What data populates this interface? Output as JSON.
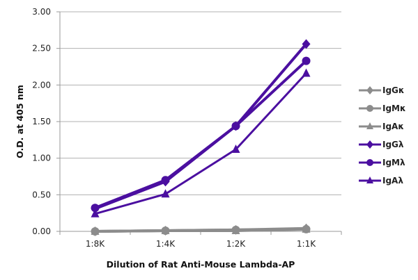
{
  "chart_data": {
    "type": "line",
    "title": "",
    "xlabel": "Dilution of Rat Anti-Mouse Lambda-AP",
    "ylabel": "O.D. at 405 nm",
    "categories": [
      "1:8K",
      "1:4K",
      "1:2K",
      "1:1K"
    ],
    "ylim": [
      0,
      3.0
    ],
    "yticks": [
      "0.00",
      "0.50",
      "1.00",
      "1.50",
      "2.00",
      "2.50",
      "3.00"
    ],
    "ytick_values": [
      0,
      0.5,
      1.0,
      1.5,
      2.0,
      2.5,
      3.0
    ],
    "grid": true,
    "legend_position": "right",
    "series": [
      {
        "name": "IgGκ",
        "color": "#8c8c8c",
        "marker": "diamond",
        "values": [
          0.0,
          0.01,
          0.02,
          0.04
        ]
      },
      {
        "name": "IgMκ",
        "color": "#8c8c8c",
        "marker": "circle",
        "values": [
          0.0,
          0.01,
          0.02,
          0.03
        ]
      },
      {
        "name": "IgAκ",
        "color": "#8c8c8c",
        "marker": "triangle",
        "values": [
          0.0,
          0.01,
          0.01,
          0.03
        ]
      },
      {
        "name": "IgGλ",
        "color": "#4b0fa0",
        "marker": "diamond",
        "values": [
          0.31,
          0.68,
          1.44,
          2.56
        ]
      },
      {
        "name": "IgMλ",
        "color": "#4b0fa0",
        "marker": "circle",
        "values": [
          0.32,
          0.7,
          1.44,
          2.33
        ]
      },
      {
        "name": "IgAλ",
        "color": "#4b0fa0",
        "marker": "triangle",
        "values": [
          0.24,
          0.51,
          1.12,
          2.16
        ]
      }
    ]
  }
}
